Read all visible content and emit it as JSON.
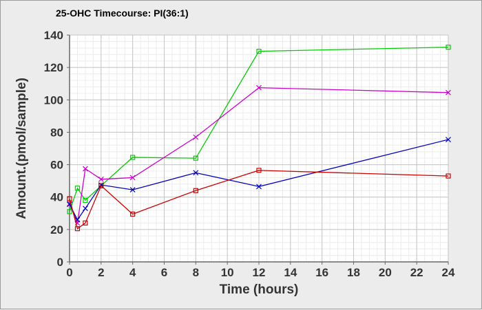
{
  "chart_data": {
    "type": "line",
    "title": "25-OHC Timecourse: PI(36:1)",
    "xlabel": "Time (hours)",
    "ylabel": "Amount.(pmol/sample)",
    "xlim": [
      0,
      24
    ],
    "ylim": [
      0,
      140
    ],
    "x_ticks": [
      0,
      2,
      4,
      6,
      8,
      10,
      12,
      14,
      16,
      18,
      20,
      22,
      24
    ],
    "y_ticks": [
      0,
      20,
      40,
      60,
      80,
      100,
      120,
      140
    ],
    "grid": true,
    "legend": "none",
    "series": [
      {
        "color": "#00cc00",
        "marker": "square",
        "x": [
          0,
          0.5,
          1,
          2,
          4,
          8,
          12,
          24
        ],
        "y": [
          31,
          45.5,
          38,
          47,
          64.5,
          64,
          130,
          132.5
        ]
      },
      {
        "color": "#cc00cc",
        "marker": "x",
        "x": [
          0,
          0.5,
          1,
          2,
          4,
          8,
          12,
          24
        ],
        "y": [
          36,
          24,
          57.5,
          51,
          52,
          77,
          107.5,
          104.5
        ]
      },
      {
        "color": "#0000bb",
        "marker": "x",
        "x": [
          0,
          0.5,
          1,
          2,
          4,
          8,
          12,
          24
        ],
        "y": [
          35.5,
          26,
          33,
          47.5,
          44.5,
          55,
          46.5,
          75.5
        ]
      },
      {
        "color": "#cc0000",
        "marker": "square",
        "x": [
          0,
          0.5,
          1,
          2,
          4,
          8,
          12,
          24
        ],
        "y": [
          39,
          20.5,
          24,
          47,
          29.5,
          44,
          56.5,
          53
        ]
      }
    ]
  }
}
